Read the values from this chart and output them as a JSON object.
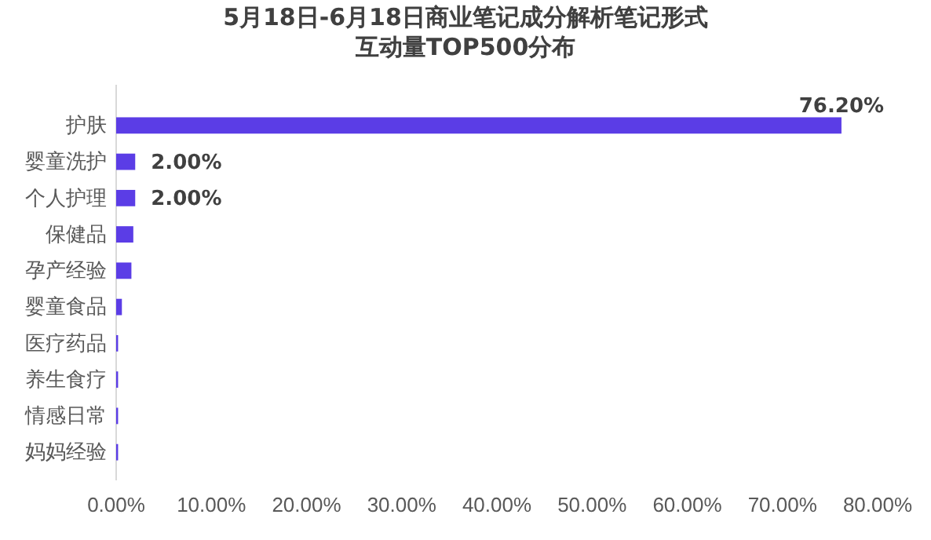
{
  "chart_data": {
    "type": "bar",
    "orientation": "horizontal",
    "title": "5月18日-6月18日商业笔记成分解析笔记形式互动量TOP500分布",
    "categories": [
      "护肤",
      "婴童洗护",
      "个人护理",
      "保健品",
      "孕产经验",
      "婴童食品",
      "医疗药品",
      "养生食疗",
      "情感日常",
      "妈妈经验"
    ],
    "values": [
      76.2,
      2.0,
      2.0,
      1.8,
      1.6,
      0.6,
      0.2,
      0.2,
      0.2,
      0.2
    ],
    "value_labels": [
      "76.20%",
      "2.00%",
      "2.00%",
      null,
      null,
      null,
      null,
      null,
      null,
      null
    ],
    "color": "#5b3de6",
    "xlim": [
      0,
      80
    ],
    "xticks": [
      {
        "value": 0,
        "label": "0.00%"
      },
      {
        "value": 10,
        "label": "10.00%"
      },
      {
        "value": 20,
        "label": "20.00%"
      },
      {
        "value": 30,
        "label": "30.00%"
      },
      {
        "value": 40,
        "label": "40.00%"
      },
      {
        "value": 50,
        "label": "50.00%"
      },
      {
        "value": 60,
        "label": "60.00%"
      },
      {
        "value": 70,
        "label": "70.00%"
      },
      {
        "value": 80,
        "label": "80.00%"
      }
    ],
    "grid": false
  }
}
